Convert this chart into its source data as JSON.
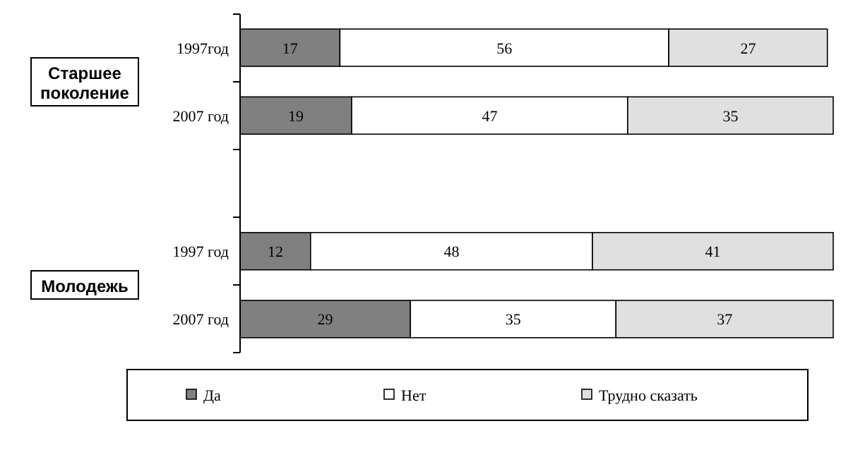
{
  "chart_data": {
    "type": "bar",
    "orientation": "horizontal",
    "stacked": true,
    "data_labels": true,
    "legend": "bottom",
    "xlim": [
      0,
      101
    ],
    "categories": [
      "1997год",
      "2007 год",
      null,
      "1997 год",
      "2007 год"
    ],
    "series": [
      {
        "name": "Да",
        "color": "#808080",
        "values": [
          17,
          19,
          null,
          12,
          29
        ]
      },
      {
        "name": "Нет",
        "color": "#ffffff",
        "values": [
          56,
          47,
          null,
          48,
          35
        ]
      },
      {
        "name": "Трудно сказать",
        "color": "#e0e0e0",
        "values": [
          27,
          35,
          null,
          41,
          37
        ]
      }
    ],
    "annotations": [
      "Старшее поколение",
      "Молодежь"
    ]
  }
}
